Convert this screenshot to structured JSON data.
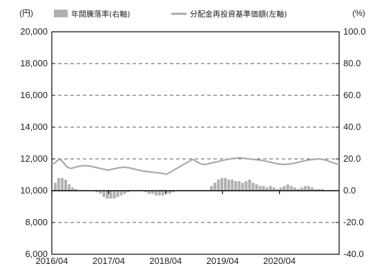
{
  "chart_data": {
    "type": "bar+line",
    "left_unit": "(円)",
    "right_unit": "(%)",
    "legend": [
      {
        "label": "年間騰落率(右軸)",
        "kind": "bar",
        "color": "#b0b0b0"
      },
      {
        "label": "分配金再投資基準価額(左軸)",
        "kind": "line",
        "color": "#a9a9a9"
      }
    ],
    "x_labels": [
      "2016/04",
      "2017/04",
      "2018/04",
      "2019/04",
      "2020/04"
    ],
    "y_left": {
      "min": 6000,
      "max": 20000,
      "ticks": [
        "6,000",
        "8,000",
        "10,000",
        "12,000",
        "14,000",
        "16,000",
        "18,000",
        "20,000"
      ]
    },
    "y_right": {
      "min": -40,
      "max": 100,
      "ticks": [
        "-40.0",
        "-20.0",
        "0.0",
        "20.0",
        "40.0",
        "60.0",
        "80.0",
        "100.0"
      ]
    },
    "grid": "dashed",
    "line_series": {
      "name": "分配金再投資基準価額",
      "t": [
        0,
        2,
        4,
        6,
        8,
        10,
        12,
        14,
        16,
        18,
        20,
        22,
        24,
        26,
        28,
        30,
        32,
        34,
        36,
        38,
        40,
        42,
        44,
        46,
        48,
        50,
        52,
        54,
        56,
        58,
        60,
        62,
        64,
        66,
        68,
        70,
        72,
        74,
        76,
        78,
        80,
        82,
        84,
        86,
        88,
        90,
        92,
        94,
        96,
        98,
        100,
        102,
        104,
        106,
        108,
        110,
        112,
        114,
        116,
        118,
        120,
        122,
        124,
        126,
        128,
        130,
        132,
        134,
        136,
        138,
        140,
        142,
        144,
        146,
        148,
        150,
        152,
        154,
        156,
        158,
        160,
        162,
        164,
        166,
        168,
        170,
        172,
        174,
        176,
        178,
        180,
        182,
        184,
        186,
        188,
        190,
        192,
        194,
        196,
        198,
        200,
        202,
        204,
        206,
        208,
        210,
        212,
        214,
        216,
        218,
        220,
        222,
        224,
        226,
        228,
        230,
        232,
        234,
        236,
        238,
        240,
        242,
        244,
        246,
        248,
        250,
        252,
        254,
        256,
        258,
        260,
        262,
        264,
        266,
        268,
        270,
        272,
        274,
        276,
        278,
        280,
        282,
        284,
        286,
        288,
        290,
        292,
        294,
        296,
        298,
        300,
        302,
        304,
        306,
        308,
        310,
        312,
        314,
        316,
        318,
        320,
        322,
        324,
        326,
        328,
        330,
        332,
        334,
        336,
        338,
        340,
        342,
        344,
        346,
        348,
        350,
        352,
        354,
        356,
        358,
        360,
        362,
        364,
        366,
        368,
        370,
        372,
        374,
        376,
        378,
        380,
        382,
        384,
        386,
        388,
        390,
        392,
        394,
        396,
        398,
        400,
        402,
        404,
        406,
        408,
        410,
        412,
        414
      ],
      "values": [
        11650,
        11700,
        11750,
        11800,
        11900,
        11950,
        11950,
        11900,
        11800,
        11700,
        11600,
        11500,
        11450,
        11420,
        11400,
        11420,
        11450,
        11480,
        11500,
        11520,
        11540,
        11550,
        11560,
        11570,
        11580,
        11570,
        11560,
        11550,
        11540,
        11520,
        11500,
        11480,
        11460,
        11440,
        11420,
        11400,
        11380,
        11360,
        11340,
        11320,
        11300,
        11300,
        11320,
        11340,
        11360,
        11380,
        11400,
        11420,
        11440,
        11450,
        11460,
        11470,
        11480,
        11470,
        11460,
        11450,
        11430,
        11410,
        11390,
        11370,
        11350,
        11330,
        11310,
        11290,
        11270,
        11250,
        11230,
        11220,
        11210,
        11200,
        11190,
        11180,
        11170,
        11160,
        11150,
        11140,
        11130,
        11120,
        11110,
        11100,
        11080,
        11050,
        11030,
        11050,
        11100,
        11150,
        11200,
        11250,
        11300,
        11350,
        11400,
        11450,
        11500,
        11550,
        11600,
        11650,
        11700,
        11750,
        11800,
        11850,
        11900,
        11950,
        11950,
        11900,
        11850,
        11800,
        11750,
        11700,
        11680,
        11660,
        11650,
        11660,
        11680,
        11700,
        11720,
        11740,
        11760,
        11780,
        11800,
        11820,
        11840,
        11860,
        11880,
        11900,
        11920,
        11940,
        11960,
        11980,
        12000,
        12010,
        12020,
        12030,
        12040,
        12050,
        12060,
        12070,
        12060,
        12050,
        12040,
        12030,
        12020,
        12010,
        12000,
        11990,
        11980,
        11970,
        11960,
        11950,
        11940,
        11930,
        11920,
        11910,
        11900,
        11880,
        11860,
        11840,
        11820,
        11800,
        11780,
        11760,
        11740,
        11720,
        11700,
        11690,
        11680,
        11670,
        11660,
        11650,
        11650,
        11660,
        11670,
        11680,
        11690,
        11700,
        11720,
        11740,
        11760,
        11780,
        11800,
        11820,
        11840,
        11860,
        11880,
        11900,
        11920,
        11930,
        11940,
        11950,
        11960,
        11970,
        11980,
        11990,
        12000,
        12000,
        11990,
        11970,
        11950,
        11930,
        11900,
        11870,
        11840,
        11810,
        11780,
        11750,
        11720,
        11700,
        11680,
        11670
      ]
    },
    "bar_series": {
      "name": "年間騰落率",
      "t": [
        5,
        10,
        15,
        20,
        25,
        30,
        35,
        40,
        45,
        50,
        55,
        60,
        65,
        70,
        75,
        80,
        85,
        90,
        95,
        100,
        105,
        110,
        115,
        120,
        125,
        130,
        135,
        140,
        145,
        150,
        155,
        160,
        165,
        170,
        175,
        180,
        185,
        190,
        195,
        200,
        205,
        210,
        215,
        220,
        225,
        230,
        235,
        240,
        245,
        250,
        255,
        260,
        265,
        270,
        275,
        280,
        285,
        290,
        295,
        300,
        305,
        310,
        315,
        320,
        325,
        330,
        335,
        340,
        345,
        350,
        355,
        360,
        365,
        370,
        375,
        380,
        385,
        390,
        395,
        400,
        405
      ],
      "values": [
        5,
        8,
        8,
        7,
        4,
        2,
        1,
        0,
        0,
        0,
        0,
        0,
        -1,
        -2,
        -4,
        -5,
        -5,
        -5,
        -4,
        -3,
        -2,
        -1,
        0,
        0,
        0,
        0,
        -1,
        -2,
        -2,
        -3,
        -3,
        -3,
        -2,
        -2,
        -1,
        0,
        0,
        0,
        0,
        0,
        0,
        0,
        0,
        0,
        0,
        3,
        5,
        7,
        8,
        8,
        7,
        7,
        6,
        6,
        5,
        6,
        7,
        5,
        4,
        3,
        3,
        2,
        3,
        2,
        1,
        2,
        3,
        4,
        3,
        2,
        1,
        2,
        3,
        3,
        2,
        1,
        1,
        1,
        0,
        0,
        0
      ]
    }
  }
}
